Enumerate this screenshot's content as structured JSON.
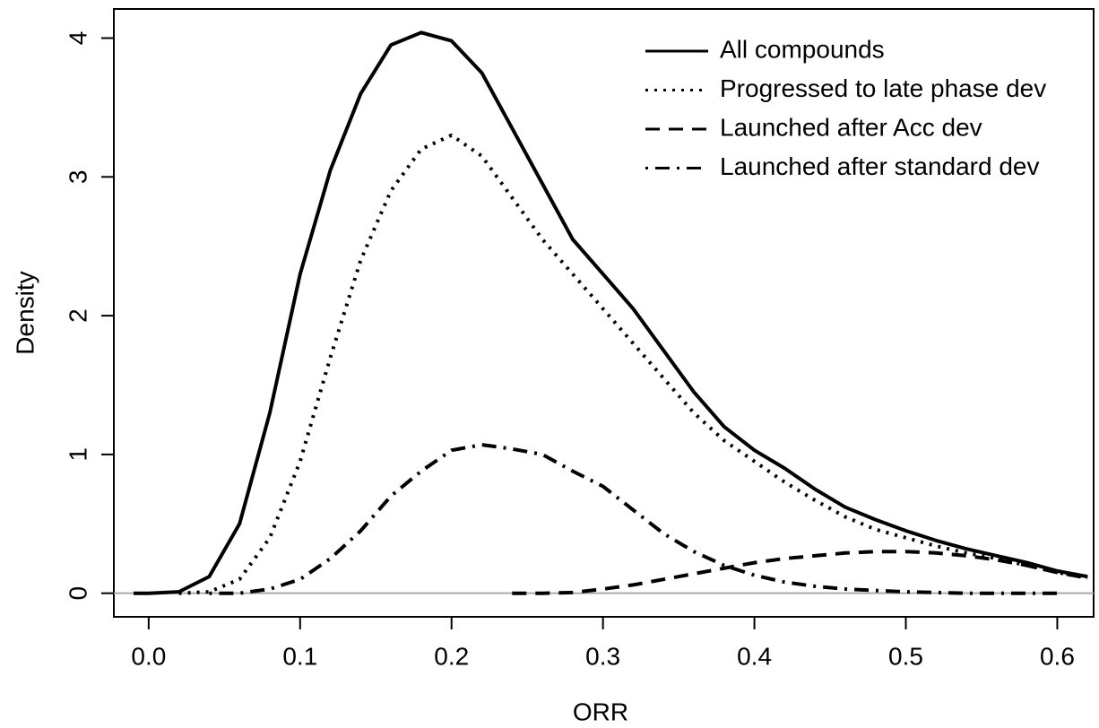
{
  "chart_data": {
    "type": "line",
    "xlabel": "ORR",
    "ylabel": "Density",
    "x": [
      -0.01,
      0,
      0.02,
      0.04,
      0.06,
      0.08,
      0.1,
      0.12,
      0.14,
      0.16,
      0.18,
      0.2,
      0.22,
      0.24,
      0.26,
      0.28,
      0.3,
      0.32,
      0.34,
      0.36,
      0.38,
      0.4,
      0.42,
      0.44,
      0.46,
      0.48,
      0.5,
      0.52,
      0.54,
      0.56,
      0.58,
      0.6,
      0.62
    ],
    "series": [
      {
        "name": "All compounds",
        "color": "#000000",
        "linestyle": "solid",
        "values": [
          0,
          0,
          0.01,
          0.12,
          0.5,
          1.3,
          2.3,
          3.05,
          3.6,
          3.95,
          4.04,
          3.98,
          3.75,
          3.35,
          2.95,
          2.55,
          2.3,
          2.05,
          1.75,
          1.45,
          1.2,
          1.03,
          0.9,
          0.75,
          0.62,
          0.53,
          0.45,
          0.38,
          0.32,
          0.27,
          0.22,
          0.16,
          0.12
        ]
      },
      {
        "name": "Progressed to late phase dev",
        "color": "#000000",
        "linestyle": "dotted",
        "values": [
          null,
          null,
          0,
          0.01,
          0.1,
          0.4,
          0.95,
          1.7,
          2.4,
          2.9,
          3.2,
          3.3,
          3.15,
          2.85,
          2.55,
          2.3,
          2.05,
          1.8,
          1.55,
          1.3,
          1.1,
          0.95,
          0.8,
          0.67,
          0.55,
          0.46,
          0.4,
          0.34,
          0.29,
          0.25,
          0.2,
          0.15,
          0.11
        ]
      },
      {
        "name": "Launched after Acc dev",
        "color": "#000000",
        "linestyle": "dashed",
        "values": [
          null,
          null,
          null,
          null,
          null,
          null,
          null,
          null,
          null,
          null,
          null,
          null,
          null,
          0,
          0,
          0.005,
          0.03,
          0.06,
          0.1,
          0.14,
          0.18,
          0.22,
          0.25,
          0.27,
          0.29,
          0.3,
          0.3,
          0.29,
          0.27,
          0.24,
          0.2,
          0.15,
          0.11
        ]
      },
      {
        "name": "Launched after standard dev",
        "color": "#000000",
        "linestyle": "dotdash",
        "values": [
          null,
          null,
          null,
          0,
          0,
          0.03,
          0.1,
          0.25,
          0.45,
          0.7,
          0.88,
          1.03,
          1.07,
          1.04,
          1.0,
          0.88,
          0.77,
          0.6,
          0.43,
          0.3,
          0.2,
          0.13,
          0.08,
          0.05,
          0.03,
          0.02,
          0.01,
          0.005,
          0,
          0,
          0,
          0,
          null
        ]
      }
    ],
    "xlim": [
      -0.023,
      0.624
    ],
    "xticks": [
      {
        "value": 0,
        "label": "0.0"
      },
      0.1,
      0.2,
      0.3,
      0.4,
      0.5,
      0.6
    ],
    "ylim": [
      -0.17,
      4.21
    ],
    "yticks": [
      0,
      1,
      2,
      3,
      4
    ],
    "reference_line": 0,
    "legend": "top-right"
  }
}
